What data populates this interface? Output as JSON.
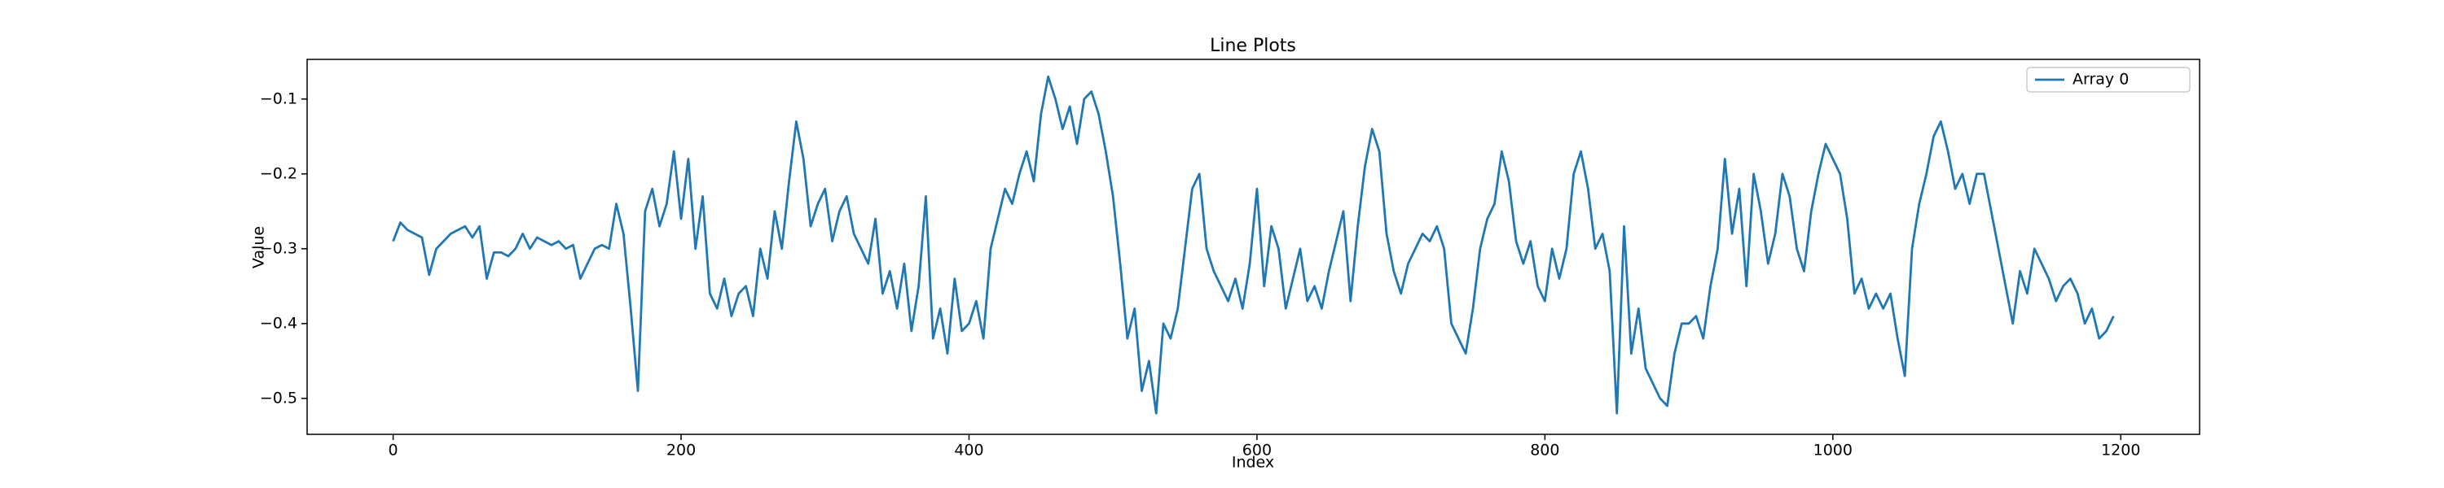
{
  "chart_data": {
    "type": "line",
    "title": "Line Plots",
    "x_label": "Index",
    "y_label": "Value",
    "x": [
      0,
      5,
      10,
      15,
      20,
      25,
      30,
      35,
      40,
      45,
      50,
      55,
      60,
      65,
      70,
      75,
      80,
      85,
      90,
      95,
      100,
      105,
      110,
      115,
      120,
      125,
      130,
      135,
      140,
      145,
      150,
      155,
      160,
      165,
      170,
      175,
      180,
      185,
      190,
      195,
      200,
      205,
      210,
      215,
      220,
      225,
      230,
      235,
      240,
      245,
      250,
      255,
      260,
      265,
      270,
      275,
      280,
      285,
      290,
      295,
      300,
      305,
      310,
      315,
      320,
      325,
      330,
      335,
      340,
      345,
      350,
      355,
      360,
      365,
      370,
      375,
      380,
      385,
      390,
      395,
      400,
      405,
      410,
      415,
      420,
      425,
      430,
      435,
      440,
      445,
      450,
      455,
      460,
      465,
      470,
      475,
      480,
      485,
      490,
      495,
      500,
      505,
      510,
      515,
      520,
      525,
      530,
      535,
      540,
      545,
      550,
      555,
      560,
      565,
      570,
      575,
      580,
      585,
      590,
      595,
      600,
      605,
      610,
      615,
      620,
      625,
      630,
      635,
      640,
      645,
      650,
      655,
      660,
      665,
      670,
      675,
      680,
      685,
      690,
      695,
      700,
      705,
      710,
      715,
      720,
      725,
      730,
      735,
      740,
      745,
      750,
      755,
      760,
      765,
      770,
      775,
      780,
      785,
      790,
      795,
      800,
      805,
      810,
      815,
      820,
      825,
      830,
      835,
      840,
      845,
      850,
      855,
      860,
      865,
      870,
      875,
      880,
      885,
      890,
      895,
      900,
      905,
      910,
      915,
      920,
      925,
      930,
      935,
      940,
      945,
      950,
      955,
      960,
      965,
      970,
      975,
      980,
      985,
      990,
      995,
      1000,
      1005,
      1010,
      1015,
      1020,
      1025,
      1030,
      1035,
      1040,
      1045,
      1050,
      1055,
      1060,
      1065,
      1070,
      1075,
      1080,
      1085,
      1090,
      1095,
      1100,
      1105,
      1110,
      1115,
      1120,
      1125,
      1130,
      1135,
      1140,
      1145,
      1150,
      1155,
      1160,
      1165,
      1170,
      1175,
      1180,
      1185,
      1190,
      1195
    ],
    "series": [
      {
        "name": "Array 0",
        "color": "#1f77b4",
        "values": [
          -0.29,
          -0.265,
          -0.275,
          -0.28,
          -0.285,
          -0.335,
          -0.3,
          -0.29,
          -0.28,
          -0.275,
          -0.27,
          -0.285,
          -0.27,
          -0.34,
          -0.305,
          -0.305,
          -0.31,
          -0.3,
          -0.28,
          -0.3,
          -0.285,
          -0.29,
          -0.295,
          -0.29,
          -0.3,
          -0.295,
          -0.34,
          -0.32,
          -0.3,
          -0.295,
          -0.3,
          -0.24,
          -0.28,
          -0.38,
          -0.49,
          -0.25,
          -0.22,
          -0.27,
          -0.24,
          -0.17,
          -0.26,
          -0.18,
          -0.3,
          -0.23,
          -0.36,
          -0.38,
          -0.34,
          -0.39,
          -0.36,
          -0.35,
          -0.39,
          -0.3,
          -0.34,
          -0.25,
          -0.3,
          -0.21,
          -0.13,
          -0.18,
          -0.27,
          -0.24,
          -0.22,
          -0.29,
          -0.25,
          -0.23,
          -0.28,
          -0.3,
          -0.32,
          -0.26,
          -0.36,
          -0.33,
          -0.38,
          -0.32,
          -0.41,
          -0.35,
          -0.23,
          -0.42,
          -0.38,
          -0.44,
          -0.34,
          -0.41,
          -0.4,
          -0.37,
          -0.42,
          -0.3,
          -0.26,
          -0.22,
          -0.24,
          -0.2,
          -0.17,
          -0.21,
          -0.12,
          -0.07,
          -0.1,
          -0.14,
          -0.11,
          -0.16,
          -0.1,
          -0.09,
          -0.12,
          -0.17,
          -0.23,
          -0.32,
          -0.42,
          -0.38,
          -0.49,
          -0.45,
          -0.52,
          -0.4,
          -0.42,
          -0.38,
          -0.3,
          -0.22,
          -0.2,
          -0.3,
          -0.33,
          -0.35,
          -0.37,
          -0.34,
          -0.38,
          -0.32,
          -0.22,
          -0.35,
          -0.27,
          -0.3,
          -0.38,
          -0.34,
          -0.3,
          -0.37,
          -0.35,
          -0.38,
          -0.33,
          -0.29,
          -0.25,
          -0.37,
          -0.27,
          -0.19,
          -0.14,
          -0.17,
          -0.28,
          -0.33,
          -0.36,
          -0.32,
          -0.3,
          -0.28,
          -0.29,
          -0.27,
          -0.3,
          -0.4,
          -0.42,
          -0.44,
          -0.38,
          -0.3,
          -0.26,
          -0.24,
          -0.17,
          -0.21,
          -0.29,
          -0.32,
          -0.29,
          -0.35,
          -0.37,
          -0.3,
          -0.34,
          -0.3,
          -0.2,
          -0.17,
          -0.22,
          -0.3,
          -0.28,
          -0.33,
          -0.52,
          -0.27,
          -0.44,
          -0.38,
          -0.46,
          -0.48,
          -0.5,
          -0.51,
          -0.44,
          -0.4,
          -0.4,
          -0.39,
          -0.42,
          -0.35,
          -0.3,
          -0.18,
          -0.28,
          -0.22,
          -0.35,
          -0.2,
          -0.25,
          -0.32,
          -0.28,
          -0.2,
          -0.23,
          -0.3,
          -0.33,
          -0.25,
          -0.2,
          -0.16,
          -0.18,
          -0.2,
          -0.26,
          -0.36,
          -0.34,
          -0.38,
          -0.36,
          -0.38,
          -0.36,
          -0.42,
          -0.47,
          -0.3,
          -0.24,
          -0.2,
          -0.15,
          -0.13,
          -0.17,
          -0.22,
          -0.2,
          -0.24,
          -0.2,
          -0.2,
          -0.25,
          -0.3,
          -0.35,
          -0.4,
          -0.33,
          -0.36,
          -0.3,
          -0.32,
          -0.34,
          -0.37,
          -0.35,
          -0.34,
          -0.36,
          -0.4,
          -0.38,
          -0.42,
          -0.41,
          -0.39
        ]
      }
    ],
    "xlim": [
      -59.75,
      1254.75
    ],
    "ylim": [
      -0.548,
      -0.047
    ],
    "xticks": [
      0,
      200,
      400,
      600,
      800,
      1000,
      1200
    ],
    "yticks": [
      {
        "value": -0.5,
        "label": "−0.5"
      },
      {
        "value": -0.4,
        "label": "−0.4"
      },
      {
        "value": -0.3,
        "label": "−0.3"
      },
      {
        "value": -0.2,
        "label": "−0.2"
      },
      {
        "value": -0.1,
        "label": "−0.1"
      }
    ],
    "grid": false,
    "legend": "upper right"
  }
}
